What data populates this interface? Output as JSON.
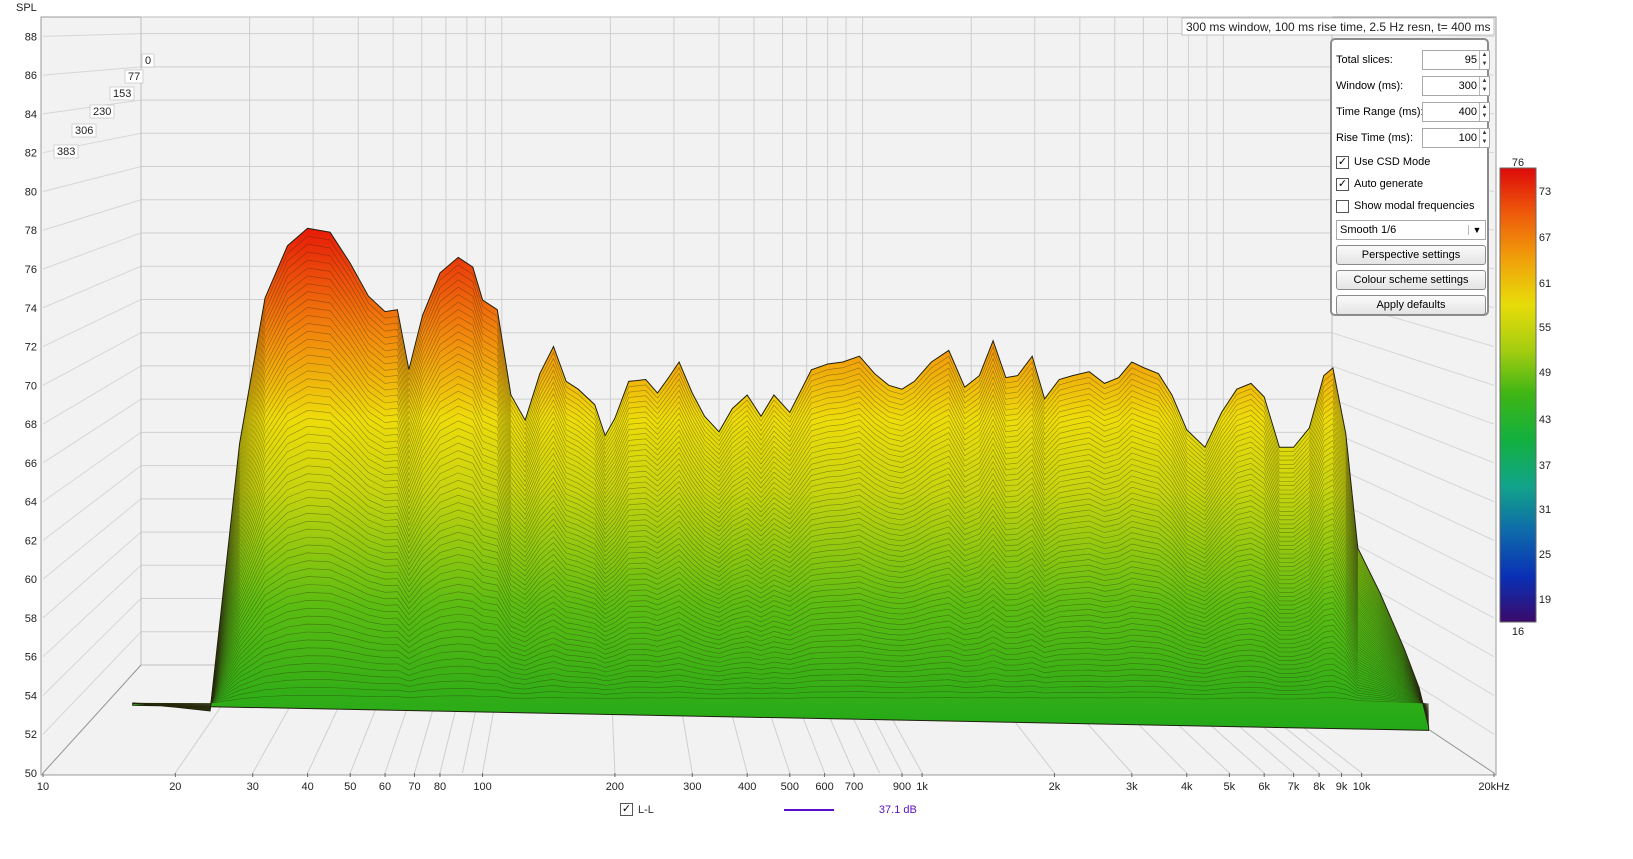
{
  "chart_data": {
    "type": "area",
    "subtype": "waterfall-csd",
    "ylabel": "SPL",
    "title_box": "300 ms window, 100 ms rise time,  2.5 Hz resn, t= 400 ms",
    "x_scale": "log",
    "x_ticks": [
      "10",
      "20",
      "30",
      "40",
      "50",
      "60",
      "70",
      "80",
      "100",
      "200",
      "300",
      "400",
      "500",
      "600",
      "700",
      "900",
      "1k",
      "2k",
      "3k",
      "4k",
      "5k",
      "6k",
      "7k",
      "8k",
      "9k",
      "10k",
      "20kHz"
    ],
    "x_tick_values": [
      10,
      20,
      30,
      40,
      50,
      60,
      70,
      80,
      100,
      200,
      300,
      400,
      500,
      600,
      700,
      900,
      1000,
      2000,
      3000,
      4000,
      5000,
      6000,
      7000,
      8000,
      9000,
      10000,
      20000
    ],
    "xlim": [
      10,
      20000
    ],
    "y_ticks": [
      "50",
      "52",
      "54",
      "56",
      "58",
      "60",
      "62",
      "64",
      "66",
      "68",
      "70",
      "72",
      "74",
      "76",
      "78",
      "80",
      "82",
      "84",
      "86",
      "88"
    ],
    "ylim": [
      50,
      89
    ],
    "depth_ticks": [
      "0",
      "77",
      "153",
      "230",
      "306",
      "383"
    ],
    "depth_unit_ms_range": [
      0,
      383
    ],
    "slices": 95,
    "peak_spl_front": [
      [
        16,
        53.6
      ],
      [
        20,
        53.4
      ],
      [
        24,
        53.2
      ],
      [
        28,
        67
      ],
      [
        32,
        74.5
      ],
      [
        36,
        77.2
      ],
      [
        40,
        78.1
      ],
      [
        45,
        77.9
      ],
      [
        50,
        76.3
      ],
      [
        55,
        74.6
      ],
      [
        60,
        73.8
      ],
      [
        64,
        73.9
      ],
      [
        68,
        70.8
      ],
      [
        73,
        73.6
      ],
      [
        80,
        75.8
      ],
      [
        88,
        76.6
      ],
      [
        95,
        76.1
      ],
      [
        100,
        74.4
      ],
      [
        108,
        73.9
      ],
      [
        116,
        69.5
      ],
      [
        125,
        68.2
      ],
      [
        135,
        70.6
      ],
      [
        145,
        72
      ],
      [
        155,
        70.2
      ],
      [
        165,
        69.8
      ],
      [
        180,
        69
      ],
      [
        190,
        67.4
      ],
      [
        200,
        68.3
      ],
      [
        215,
        70.2
      ],
      [
        235,
        70.3
      ],
      [
        250,
        69.6
      ],
      [
        265,
        70.4
      ],
      [
        280,
        71.2
      ],
      [
        300,
        69.6
      ],
      [
        320,
        68.4
      ],
      [
        345,
        67.6
      ],
      [
        370,
        68.8
      ],
      [
        400,
        69.5
      ],
      [
        430,
        68.4
      ],
      [
        460,
        69.5
      ],
      [
        500,
        68.6
      ],
      [
        560,
        70.8
      ],
      [
        610,
        71.1
      ],
      [
        660,
        71.2
      ],
      [
        720,
        71.5
      ],
      [
        780,
        70.6
      ],
      [
        840,
        70
      ],
      [
        900,
        69.8
      ],
      [
        960,
        70.2
      ],
      [
        1050,
        71.2
      ],
      [
        1150,
        71.8
      ],
      [
        1250,
        69.9
      ],
      [
        1350,
        70.5
      ],
      [
        1450,
        72.3
      ],
      [
        1550,
        70.4
      ],
      [
        1650,
        70.5
      ],
      [
        1780,
        71.5
      ],
      [
        1900,
        69.3
      ],
      [
        2050,
        70.3
      ],
      [
        2200,
        70.5
      ],
      [
        2400,
        70.7
      ],
      [
        2600,
        70.1
      ],
      [
        2800,
        70.4
      ],
      [
        3000,
        71.2
      ],
      [
        3200,
        70.9
      ],
      [
        3450,
        70.6
      ],
      [
        3700,
        69.5
      ],
      [
        4000,
        67.7
      ],
      [
        4400,
        66.8
      ],
      [
        4800,
        68.6
      ],
      [
        5200,
        69.8
      ],
      [
        5600,
        70.1
      ],
      [
        6000,
        69.4
      ],
      [
        6500,
        66.8
      ],
      [
        7000,
        66.8
      ],
      [
        7600,
        67.8
      ],
      [
        8200,
        70.5
      ],
      [
        8600,
        70.9
      ],
      [
        9200,
        67.5
      ],
      [
        9800,
        61.6
      ],
      [
        11000,
        59.3
      ],
      [
        12500,
        56.4
      ],
      [
        13500,
        54.4
      ],
      [
        14200,
        52.4
      ]
    ],
    "colorbar": {
      "ticks": [
        "76",
        "73",
        "67",
        "61",
        "55",
        "49",
        "43",
        "37",
        "31",
        "25",
        "19",
        "16"
      ],
      "range": [
        16,
        76
      ],
      "colors": [
        "#dd0a0a",
        "#ee5a0a",
        "#f0a00a",
        "#e8dc0a",
        "#a6cd10",
        "#3db515",
        "#12b040",
        "#12a48a",
        "#0e6aaa",
        "#0a30b5",
        "#1a0a9a",
        "#3a0a6a"
      ]
    },
    "legend": [
      {
        "checkbox": true,
        "name": "L-L",
        "value": "37.1 dB",
        "color": "#5a10c8"
      }
    ]
  },
  "controls": {
    "total_slices_label": "Total slices:",
    "total_slices_value": "95",
    "window_label": "Window (ms):",
    "window_value": "300",
    "time_range_label": "Time Range (ms):",
    "time_range_value": "400",
    "rise_time_label": "Rise Time (ms):",
    "rise_time_value": "100",
    "use_csd_label": "Use CSD Mode",
    "use_csd_checked": true,
    "auto_generate_label": "Auto generate",
    "auto_generate_checked": true,
    "modal_label": "Show modal frequencies",
    "modal_checked": false,
    "smoothing_value": "Smooth 1/6",
    "perspective_label": "Perspective settings",
    "colour_label": "Colour scheme settings",
    "defaults_label": "Apply defaults"
  }
}
